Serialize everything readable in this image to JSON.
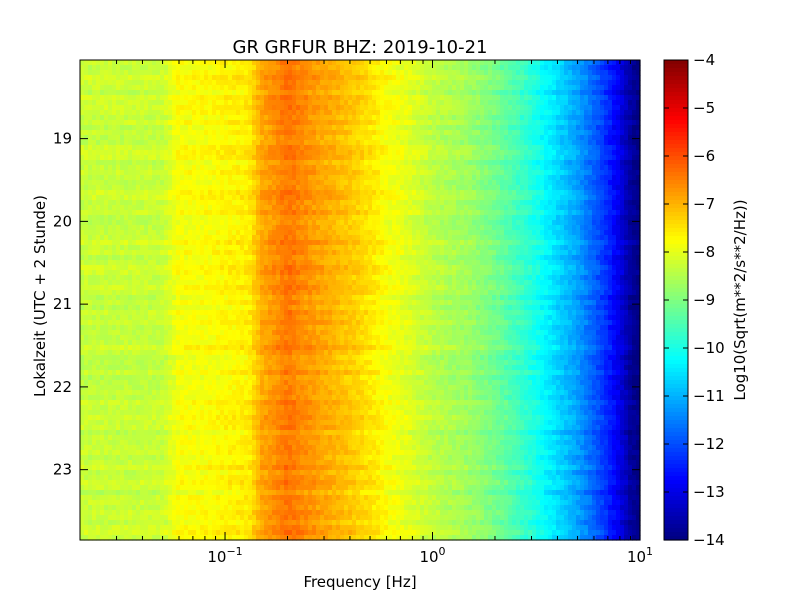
{
  "chart_data": {
    "type": "heatmap",
    "title": "GR GRFUR BHZ: 2019-10-21",
    "xlabel": "Frequency [Hz]",
    "ylabel": "Lokalzeit (UTC + 2 Stunde)",
    "x_scale": "log",
    "x_range": [
      0.02,
      10
    ],
    "x_ticks": [
      {
        "value": 0.1,
        "base": "10",
        "exp": "−1"
      },
      {
        "value": 1,
        "base": "10",
        "exp": "0"
      },
      {
        "value": 10,
        "base": "10",
        "exp": "1"
      }
    ],
    "y_range": [
      18.05,
      23.85
    ],
    "y_inverted": true,
    "y_ticks": [
      "19",
      "20",
      "21",
      "22",
      "23"
    ],
    "y_tick_values": [
      19,
      20,
      21,
      22,
      23
    ],
    "colorbar": {
      "label": "Log10(Sqrt(m**2/s**2/Hz))",
      "range": [
        -14,
        -4
      ],
      "ticks": [
        "−4",
        "−5",
        "−6",
        "−7",
        "−8",
        "−9",
        "−10",
        "−11",
        "−12",
        "−13",
        "−14"
      ],
      "tick_values": [
        -4,
        -5,
        -6,
        -7,
        -8,
        -9,
        -10,
        -11,
        -12,
        -13,
        -14
      ],
      "colormap": "jet"
    },
    "spectrum_profile": {
      "frequencies_hz": [
        0.02,
        0.03,
        0.05,
        0.06,
        0.08,
        0.1,
        0.13,
        0.15,
        0.18,
        0.2,
        0.25,
        0.3,
        0.4,
        0.5,
        0.6,
        0.8,
        1,
        1.5,
        2,
        3,
        4,
        5,
        6,
        7,
        8,
        9,
        10
      ],
      "levels_log10": [
        -8.3,
        -8.3,
        -8.3,
        -7.8,
        -7.8,
        -7.7,
        -7.6,
        -6.9,
        -6.6,
        -6.4,
        -6.7,
        -6.9,
        -7.2,
        -7.5,
        -7.8,
        -8.1,
        -8.4,
        -8.7,
        -9.1,
        -9.9,
        -10.6,
        -11.2,
        -11.8,
        -12.4,
        -13.0,
        -13.7,
        -14.0
      ]
    }
  }
}
